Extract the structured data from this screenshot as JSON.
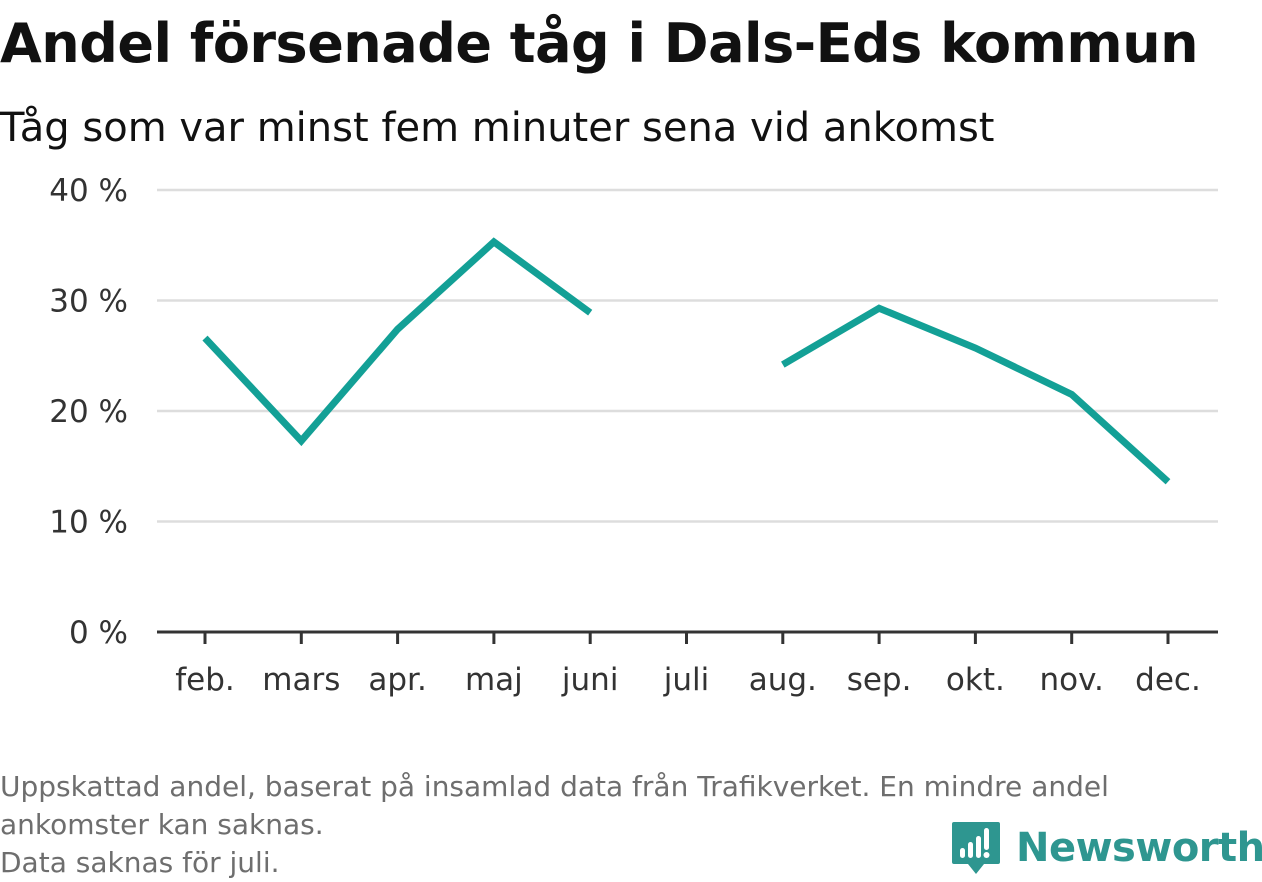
{
  "title": "Andel försenade tåg i Dals-Eds kommun",
  "subtitle": "Tåg som var minst fem minuter sena vid ankomst",
  "footnote": {
    "line1": "Uppskattad andel, baserat på insamlad data från Trafikverket. En mindre andel",
    "line2": "ankomster kan saknas.",
    "line3": "Data saknas för juli."
  },
  "brand": {
    "name": "Newsworthy",
    "icon": "newsworthy-logo-icon",
    "color": "#2e9690"
  },
  "chart_data": {
    "type": "line",
    "title": "Andel försenade tåg i Dals-Eds kommun",
    "subtitle": "Tåg som var minst fem minuter sena vid ankomst",
    "categories": [
      "feb.",
      "mars",
      "apr.",
      "maj",
      "juni",
      "juli",
      "aug.",
      "sep.",
      "okt.",
      "nov.",
      "dec."
    ],
    "series": [
      {
        "values": [
          26.6,
          17.3,
          27.4,
          35.3,
          28.9,
          null,
          24.2,
          29.3,
          25.7,
          21.5,
          13.6
        ]
      }
    ],
    "ylim": [
      0,
      40
    ],
    "yticks": [
      0,
      10,
      20,
      30,
      40
    ],
    "ytick_labels": [
      "0 %",
      "10 %",
      "20 %",
      "30 %",
      "40 %"
    ],
    "grid": true,
    "line_color": "#13a096",
    "grid_color": "#dddddd",
    "axis_color": "#333333"
  }
}
